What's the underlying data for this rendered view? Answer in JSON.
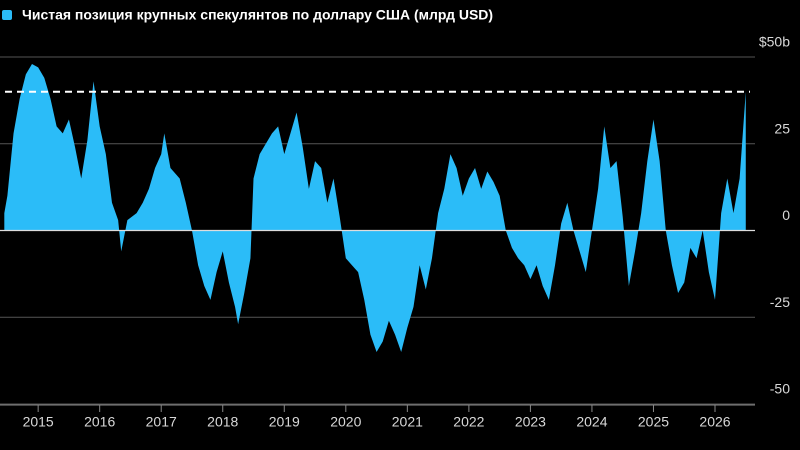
{
  "chart_data": {
    "type": "area",
    "series": [
      {
        "name": "Чистая позиция крупных спекулянтов по доллару США (млрд USD)",
        "color": "#2bbcf8",
        "values": [
          5,
          10,
          28,
          38,
          45,
          48,
          47,
          44,
          38,
          30,
          28,
          32,
          24,
          15,
          26,
          43,
          30,
          22,
          8,
          3,
          -6,
          3,
          5,
          8,
          12,
          18,
          22,
          28,
          18,
          15,
          8,
          0,
          -10,
          -16,
          -20,
          -12,
          -6,
          -15,
          -22,
          -27,
          -18,
          -8,
          15,
          22,
          25,
          28,
          30,
          22,
          28,
          34,
          24,
          12,
          20,
          18,
          8,
          15,
          4,
          -8,
          -10,
          -12,
          -20,
          -30,
          -35,
          -32,
          -26,
          -30,
          -35,
          -28,
          -22,
          -10,
          -17,
          -8,
          5,
          12,
          22,
          18,
          10,
          15,
          18,
          12,
          17,
          14,
          10,
          0,
          -5,
          -8,
          -10,
          -14,
          -10,
          -16,
          -20,
          -10,
          2,
          8,
          0,
          -6,
          -12,
          0,
          12,
          30,
          18,
          20,
          4,
          -16,
          -6,
          5,
          20,
          32,
          20,
          0,
          -10,
          -18,
          -15,
          -5,
          -8,
          0,
          -12,
          -20,
          5,
          15,
          5,
          15,
          40
        ]
      }
    ],
    "x": [
      2014.45,
      2014.5,
      2014.6,
      2014.7,
      2014.8,
      2014.9,
      2015.0,
      2015.1,
      2015.2,
      2015.3,
      2015.4,
      2015.5,
      2015.6,
      2015.7,
      2015.8,
      2015.9,
      2016.0,
      2016.1,
      2016.2,
      2016.3,
      2016.35,
      2016.45,
      2016.6,
      2016.7,
      2016.8,
      2016.9,
      2017.0,
      2017.05,
      2017.15,
      2017.3,
      2017.4,
      2017.5,
      2017.6,
      2017.7,
      2017.8,
      2017.9,
      2018.0,
      2018.1,
      2018.2,
      2018.25,
      2018.35,
      2018.45,
      2018.5,
      2018.6,
      2018.7,
      2018.8,
      2018.9,
      2019.0,
      2019.1,
      2019.2,
      2019.3,
      2019.4,
      2019.5,
      2019.6,
      2019.7,
      2019.8,
      2019.9,
      2020.0,
      2020.1,
      2020.2,
      2020.3,
      2020.4,
      2020.5,
      2020.6,
      2020.7,
      2020.8,
      2020.9,
      2021.0,
      2021.1,
      2021.2,
      2021.3,
      2021.4,
      2021.5,
      2021.6,
      2021.7,
      2021.8,
      2021.9,
      2022.0,
      2022.1,
      2022.2,
      2022.3,
      2022.4,
      2022.5,
      2022.6,
      2022.7,
      2022.8,
      2022.9,
      2023.0,
      2023.1,
      2023.2,
      2023.3,
      2023.4,
      2023.5,
      2023.6,
      2023.7,
      2023.8,
      2023.9,
      2024.0,
      2024.1,
      2024.2,
      2024.3,
      2024.4,
      2024.5,
      2024.6,
      2024.7,
      2024.8,
      2024.9,
      2025.0,
      2025.1,
      2025.2,
      2025.3,
      2025.4,
      2025.5,
      2025.6,
      2025.7,
      2025.8,
      2025.9,
      2026.0,
      2026.1,
      2026.2,
      2026.3,
      2026.4,
      2026.5
    ],
    "xlim": [
      2014.38,
      2026.65
    ],
    "xticks": [
      2015,
      2016,
      2017,
      2018,
      2019,
      2020,
      2021,
      2022,
      2023,
      2024,
      2025,
      2026
    ],
    "ylim": [
      -50,
      50
    ],
    "yticks": [
      {
        "value": 50,
        "label": "$50b"
      },
      25,
      0,
      -25,
      -50
    ],
    "reference_line": 40,
    "grid": true
  }
}
